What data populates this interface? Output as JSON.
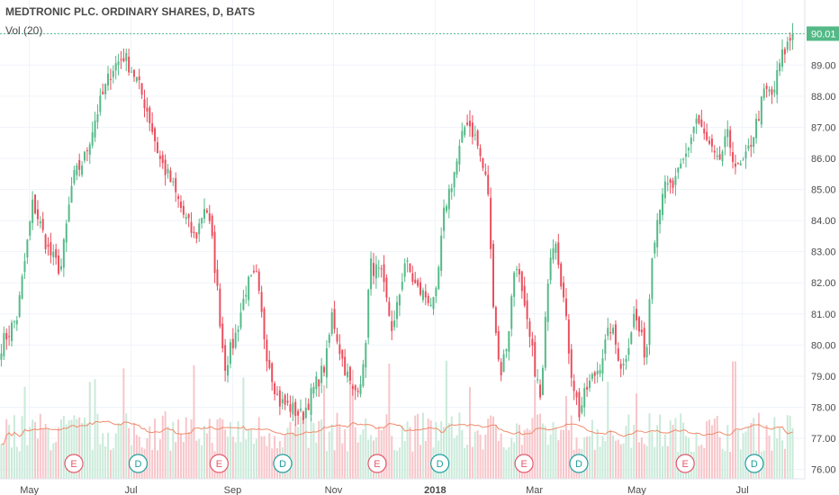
{
  "chart_data": {
    "type": "candlestick",
    "title": "MEDTRONIC PLC. ORDINARY SHARES, D, BATS",
    "subtitle": "Vol (20)",
    "ylim": [
      75.7,
      90.6
    ],
    "y_ticks": [
      "76.00",
      "77.00",
      "78.00",
      "79.00",
      "80.00",
      "81.00",
      "82.00",
      "83.00",
      "84.00",
      "85.00",
      "86.00",
      "87.00",
      "88.00",
      "89.00",
      "90.00"
    ],
    "x_ticks": [
      {
        "label": "May",
        "t": 0.037,
        "bold": false
      },
      {
        "label": "Jul",
        "t": 0.165,
        "bold": false
      },
      {
        "label": "Sep",
        "t": 0.293,
        "bold": false
      },
      {
        "label": "Nov",
        "t": 0.42,
        "bold": false
      },
      {
        "label": "2018",
        "t": 0.548,
        "bold": true
      },
      {
        "label": "Mar",
        "t": 0.673,
        "bold": false
      },
      {
        "label": "May",
        "t": 0.802,
        "bold": false
      },
      {
        "label": "Jul",
        "t": 0.935,
        "bold": false
      }
    ],
    "last_price": "90.01",
    "up_color": "#53b987",
    "down_color": "#eb4d5c",
    "keypoints": [
      [
        0.0,
        80.0
      ],
      [
        0.02,
        80.9
      ],
      [
        0.04,
        84.6
      ],
      [
        0.06,
        83.0
      ],
      [
        0.075,
        82.4
      ],
      [
        0.09,
        85.3
      ],
      [
        0.105,
        86.0
      ],
      [
        0.12,
        87.4
      ],
      [
        0.14,
        88.9
      ],
      [
        0.155,
        89.3
      ],
      [
        0.17,
        88.6
      ],
      [
        0.185,
        87.5
      ],
      [
        0.2,
        86.0
      ],
      [
        0.215,
        85.2
      ],
      [
        0.23,
        84.2
      ],
      [
        0.245,
        83.4
      ],
      [
        0.258,
        84.6
      ],
      [
        0.266,
        83.4
      ],
      [
        0.272,
        82.0
      ],
      [
        0.282,
        79.3
      ],
      [
        0.295,
        80.2
      ],
      [
        0.31,
        81.9
      ],
      [
        0.322,
        82.2
      ],
      [
        0.335,
        79.8
      ],
      [
        0.35,
        78.2
      ],
      [
        0.365,
        78.0
      ],
      [
        0.38,
        77.7
      ],
      [
        0.395,
        78.6
      ],
      [
        0.41,
        79.4
      ],
      [
        0.418,
        81.0
      ],
      [
        0.43,
        79.6
      ],
      [
        0.445,
        78.4
      ],
      [
        0.458,
        79.2
      ],
      [
        0.466,
        82.6
      ],
      [
        0.48,
        82.2
      ],
      [
        0.495,
        80.4
      ],
      [
        0.51,
        82.7
      ],
      [
        0.525,
        81.8
      ],
      [
        0.54,
        81.5
      ],
      [
        0.548,
        81.2
      ],
      [
        0.56,
        84.4
      ],
      [
        0.575,
        85.8
      ],
      [
        0.588,
        87.3
      ],
      [
        0.6,
        86.6
      ],
      [
        0.615,
        85.0
      ],
      [
        0.62,
        82.0
      ],
      [
        0.63,
        79.0
      ],
      [
        0.64,
        80.2
      ],
      [
        0.65,
        82.9
      ],
      [
        0.66,
        81.2
      ],
      [
        0.672,
        79.6
      ],
      [
        0.682,
        78.1
      ],
      [
        0.692,
        82.8
      ],
      [
        0.7,
        83.6
      ],
      [
        0.71,
        81.6
      ],
      [
        0.72,
        79.2
      ],
      [
        0.73,
        77.8
      ],
      [
        0.74,
        78.6
      ],
      [
        0.755,
        79.3
      ],
      [
        0.77,
        80.6
      ],
      [
        0.785,
        79.2
      ],
      [
        0.8,
        81.0
      ],
      [
        0.815,
        79.6
      ],
      [
        0.822,
        83.0
      ],
      [
        0.835,
        85.0
      ],
      [
        0.85,
        85.1
      ],
      [
        0.865,
        86.1
      ],
      [
        0.878,
        87.3
      ],
      [
        0.89,
        86.6
      ],
      [
        0.905,
        85.8
      ],
      [
        0.918,
        86.7
      ],
      [
        0.93,
        85.6
      ],
      [
        0.94,
        85.9
      ],
      [
        0.955,
        87.2
      ],
      [
        0.965,
        88.2
      ],
      [
        0.975,
        88.0
      ],
      [
        0.985,
        89.2
      ],
      [
        1.0,
        90.0
      ]
    ],
    "events": [
      {
        "label": "E",
        "t": 0.093
      },
      {
        "label": "D",
        "t": 0.174
      },
      {
        "label": "E",
        "t": 0.276
      },
      {
        "label": "D",
        "t": 0.356
      },
      {
        "label": "E",
        "t": 0.475
      },
      {
        "label": "D",
        "t": 0.554
      },
      {
        "label": "E",
        "t": 0.66
      },
      {
        "label": "D",
        "t": 0.729
      },
      {
        "label": "E",
        "t": 0.863
      },
      {
        "label": "D",
        "t": 0.95
      }
    ]
  }
}
